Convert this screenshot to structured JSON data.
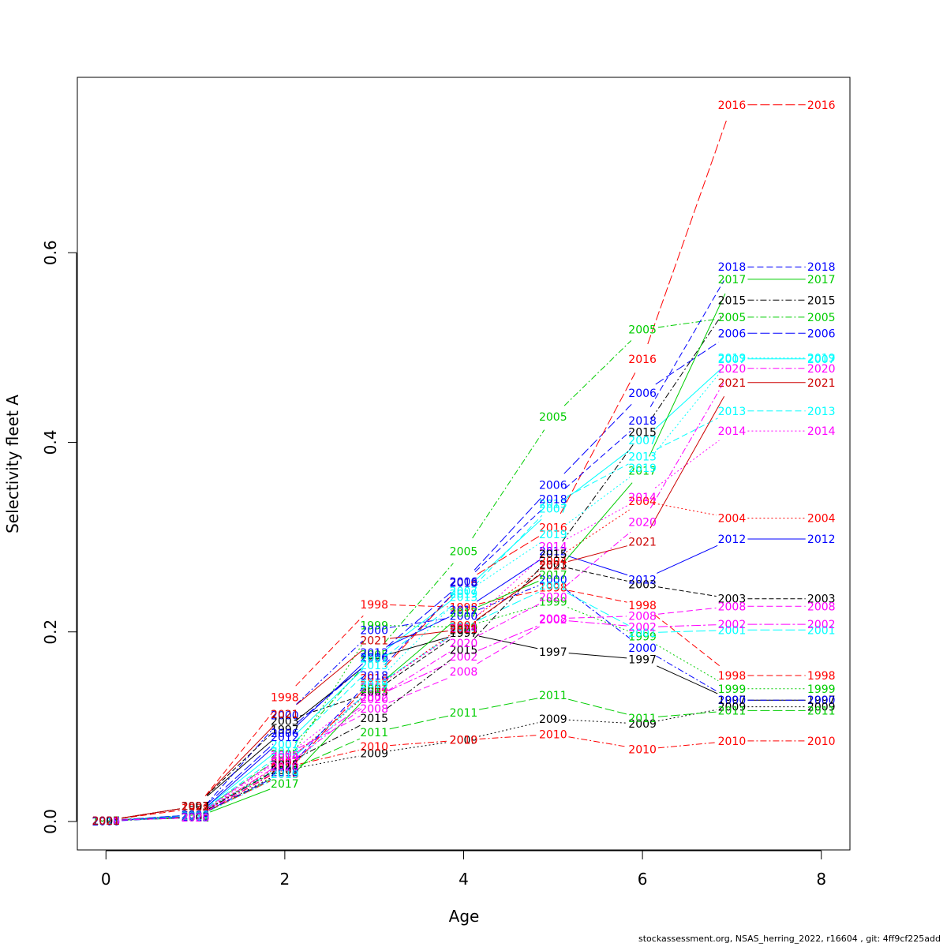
{
  "chart_data": {
    "type": "line",
    "xlabel": "Age",
    "ylabel": "Selectivity fleet A",
    "xlim": [
      -0.32,
      8.32
    ],
    "ylim": [
      -0.03,
      0.785
    ],
    "xticks": [
      0,
      2,
      4,
      6,
      8
    ],
    "yticks": [
      0.0,
      0.2,
      0.4,
      0.6
    ],
    "ytick_labels": [
      "0.0",
      "0.2",
      "0.4",
      "0.6"
    ],
    "grid": false,
    "x": [
      0,
      1,
      2,
      3,
      4,
      5,
      6,
      7,
      8
    ],
    "series": [
      {
        "name": "1997",
        "color": "#000000",
        "dash": "",
        "values": [
          0.001,
          0.016,
          0.097,
          0.172,
          0.199,
          0.179,
          0.171,
          0.128,
          0.128
        ]
      },
      {
        "name": "1998",
        "color": "#ff0000",
        "dash": "8,4",
        "values": [
          0.001,
          0.014,
          0.131,
          0.229,
          0.226,
          0.247,
          0.228,
          0.154,
          0.154
        ]
      },
      {
        "name": "1999",
        "color": "#00cd00",
        "dash": "2,3",
        "values": [
          0.001,
          0.007,
          0.058,
          0.207,
          0.205,
          0.232,
          0.195,
          0.14,
          0.14
        ]
      },
      {
        "name": "2000",
        "color": "#0000ff",
        "dash": "8,3,2,3",
        "values": [
          0.0,
          0.005,
          0.112,
          0.202,
          0.217,
          0.255,
          0.183,
          0.128,
          0.128
        ]
      },
      {
        "name": "2001",
        "color": "#00ffff",
        "dash": "12,4",
        "values": [
          0.001,
          0.007,
          0.06,
          0.142,
          0.205,
          0.249,
          0.199,
          0.202,
          0.202
        ]
      },
      {
        "name": "2002",
        "color": "#ff00ff",
        "dash": "12,3,3,3",
        "values": [
          0.001,
          0.004,
          0.064,
          0.131,
          0.174,
          0.213,
          0.205,
          0.208,
          0.208
        ]
      },
      {
        "name": "2003",
        "color": "#000000",
        "dash": "6,3",
        "values": [
          0.001,
          0.016,
          0.106,
          0.137,
          0.202,
          0.271,
          0.25,
          0.235,
          0.235
        ]
      },
      {
        "name": "2004",
        "color": "#ff0000",
        "dash": "2,3",
        "values": [
          0.001,
          0.006,
          0.062,
          0.14,
          0.207,
          0.275,
          0.338,
          0.32,
          0.32
        ]
      },
      {
        "name": "2005",
        "color": "#00cd00",
        "dash": "8,3,2,3",
        "values": [
          0.001,
          0.006,
          0.071,
          0.176,
          0.285,
          0.427,
          0.519,
          0.532,
          0.532
        ]
      },
      {
        "name": "2006",
        "color": "#0000ff",
        "dash": "12,4",
        "values": [
          0.001,
          0.007,
          0.093,
          0.173,
          0.253,
          0.355,
          0.452,
          0.515,
          0.515
        ]
      },
      {
        "name": "2007",
        "color": "#00ffff",
        "dash": "",
        "values": [
          0.001,
          0.006,
          0.081,
          0.172,
          0.243,
          0.33,
          0.402,
          0.488,
          0.488
        ]
      },
      {
        "name": "2008",
        "color": "#ff00ff",
        "dash": "8,4",
        "values": [
          0.001,
          0.006,
          0.07,
          0.119,
          0.158,
          0.214,
          0.217,
          0.227,
          0.227
        ]
      },
      {
        "name": "2009",
        "color": "#000000",
        "dash": "2,3",
        "values": [
          0.001,
          0.004,
          0.054,
          0.072,
          0.086,
          0.108,
          0.103,
          0.121,
          0.121
        ]
      },
      {
        "name": "2010",
        "color": "#ff0000",
        "dash": "8,3,2,3",
        "values": [
          0.001,
          0.004,
          0.057,
          0.079,
          0.086,
          0.092,
          0.076,
          0.085,
          0.085
        ]
      },
      {
        "name": "2011",
        "color": "#00cd00",
        "dash": "12,4",
        "values": [
          0.001,
          0.004,
          0.052,
          0.094,
          0.115,
          0.133,
          0.109,
          0.117,
          0.117
        ]
      },
      {
        "name": "2012",
        "color": "#0000ff",
        "dash": "",
        "values": [
          0.001,
          0.005,
          0.089,
          0.178,
          0.223,
          0.285,
          0.255,
          0.298,
          0.298
        ]
      },
      {
        "name": "2013",
        "color": "#00ffff",
        "dash": "8,4",
        "values": [
          0.001,
          0.006,
          0.074,
          0.165,
          0.237,
          0.335,
          0.385,
          0.433,
          0.433
        ]
      },
      {
        "name": "2014",
        "color": "#ff00ff",
        "dash": "2,3",
        "values": [
          0.001,
          0.005,
          0.068,
          0.141,
          0.204,
          0.29,
          0.342,
          0.412,
          0.412
        ]
      },
      {
        "name": "2015",
        "color": "#000000",
        "dash": "8,3,2,3",
        "values": [
          0.001,
          0.005,
          0.06,
          0.109,
          0.181,
          0.282,
          0.411,
          0.55,
          0.55
        ]
      },
      {
        "name": "2016",
        "color": "#ff0000",
        "dash": "12,4",
        "values": [
          0.001,
          0.005,
          0.05,
          0.151,
          0.252,
          0.31,
          0.488,
          0.756,
          0.756
        ]
      },
      {
        "name": "2017",
        "color": "#00cd00",
        "dash": "",
        "values": [
          0.001,
          0.004,
          0.04,
          0.14,
          0.22,
          0.26,
          0.37,
          0.572,
          0.572
        ]
      },
      {
        "name": "2018",
        "color": "#0000ff",
        "dash": "8,4",
        "values": [
          0.001,
          0.005,
          0.052,
          0.154,
          0.252,
          0.34,
          0.423,
          0.585,
          0.585
        ]
      },
      {
        "name": "2019",
        "color": "#00ffff",
        "dash": "2,3",
        "values": [
          0.001,
          0.004,
          0.05,
          0.145,
          0.24,
          0.303,
          0.373,
          0.489,
          0.489
        ]
      },
      {
        "name": "2020",
        "color": "#ff00ff",
        "dash": "8,3,2,3",
        "values": [
          0.001,
          0.004,
          0.058,
          0.129,
          0.188,
          0.237,
          0.316,
          0.478,
          0.478
        ]
      },
      {
        "name": "2021",
        "color": "#cd0000",
        "dash": "",
        "values": [
          0.001,
          0.016,
          0.113,
          0.191,
          0.203,
          0.27,
          0.295,
          0.463,
          0.463
        ]
      }
    ]
  },
  "footer": "stockassessment.org, NSAS_herring_2022, r16604 , git: 4ff9cf225add"
}
